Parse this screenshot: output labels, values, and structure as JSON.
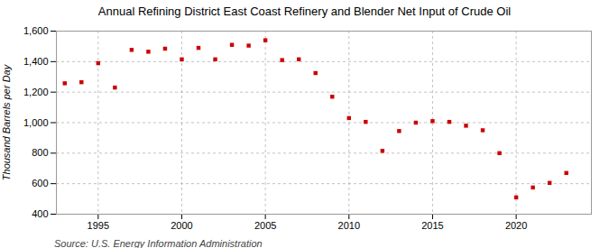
{
  "chart_data": {
    "type": "scatter",
    "title": "Annual Refining District East Coast Refinery and Blender Net Input of Crude Oil",
    "ylabel": "Thousand Barrels per Day",
    "source": "Source: U.S. Energy Information Administration",
    "x": [
      1993,
      1994,
      1995,
      1996,
      1997,
      1998,
      1999,
      2000,
      2001,
      2002,
      2003,
      2004,
      2005,
      2006,
      2007,
      2008,
      2009,
      2010,
      2011,
      2012,
      2013,
      2014,
      2015,
      2016,
      2017,
      2018,
      2019,
      2020,
      2021,
      2022,
      2023
    ],
    "values": [
      1258,
      1265,
      1390,
      1230,
      1477,
      1465,
      1485,
      1415,
      1490,
      1415,
      1510,
      1505,
      1540,
      1410,
      1415,
      1325,
      1170,
      1030,
      1005,
      815,
      945,
      1000,
      1010,
      1005,
      980,
      950,
      800,
      510,
      575,
      605,
      670
    ],
    "color": "#cc0000",
    "marker": "square",
    "xlim": [
      1992.5,
      2024.5
    ],
    "xticks": [
      1995,
      2000,
      2005,
      2010,
      2015,
      2020
    ],
    "ylim": [
      400,
      1600
    ],
    "yticks": [
      400,
      600,
      800,
      {
        "value": 1000,
        "label": "1,000"
      },
      {
        "value": 1200,
        "label": "1,200"
      },
      {
        "value": 1400,
        "label": "1,400"
      },
      {
        "value": 1600,
        "label": "1,600"
      }
    ],
    "grid": true
  }
}
